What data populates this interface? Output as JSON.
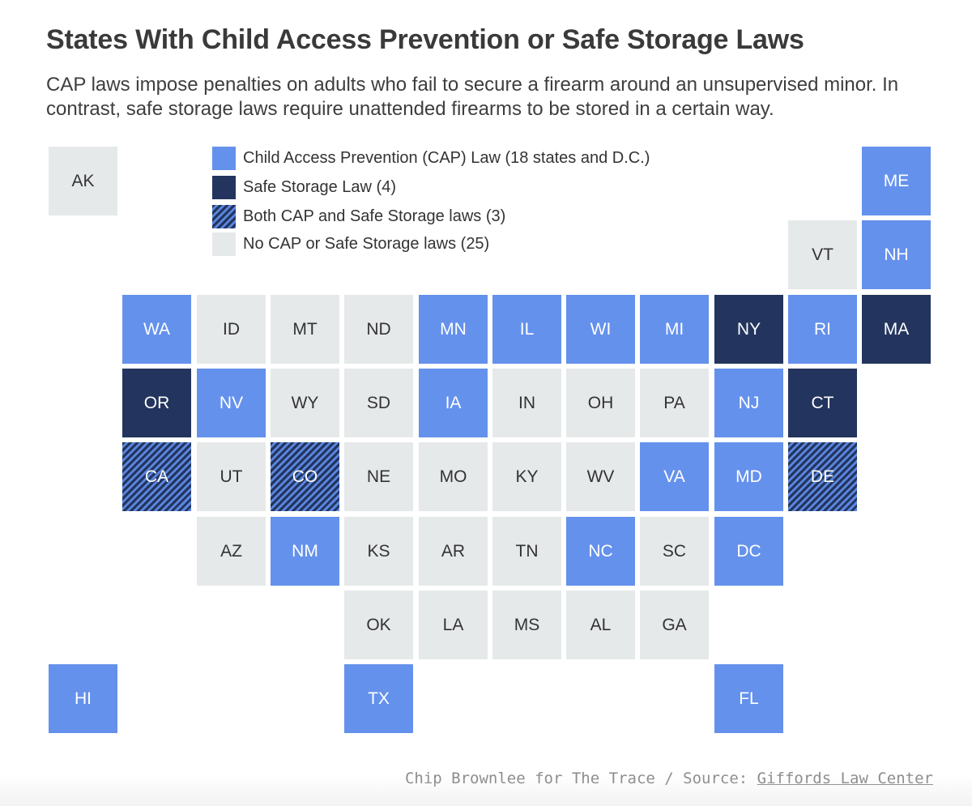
{
  "title": "States With Child Access Prevention or Safe Storage Laws",
  "subtitle": "CAP laws impose penalties on adults who fail to secure a firearm around an unsupervised minor. In contrast, safe storage laws require unattended firearms to be stored in a certain way.",
  "legend": [
    {
      "key": "cap",
      "label": "Child Access Prevention (CAP) Law (18 states and D.C.)"
    },
    {
      "key": "safe",
      "label": "Safe Storage Law (4)"
    },
    {
      "key": "both",
      "label": "Both CAP and Safe Storage laws (3)"
    },
    {
      "key": "none",
      "label": "No CAP or Safe Storage laws (25)"
    }
  ],
  "colors": {
    "cap": "#6491ec",
    "safe": "#23355e",
    "both_hatch": "#5b86e0",
    "none": "#e6e9ea"
  },
  "states": [
    {
      "abbr": "AK",
      "cat": "none"
    },
    {
      "abbr": "ME",
      "cat": "cap"
    },
    {
      "abbr": "VT",
      "cat": "none"
    },
    {
      "abbr": "NH",
      "cat": "cap"
    },
    {
      "abbr": "WA",
      "cat": "cap"
    },
    {
      "abbr": "ID",
      "cat": "none"
    },
    {
      "abbr": "MT",
      "cat": "none"
    },
    {
      "abbr": "ND",
      "cat": "none"
    },
    {
      "abbr": "MN",
      "cat": "cap"
    },
    {
      "abbr": "IL",
      "cat": "cap"
    },
    {
      "abbr": "WI",
      "cat": "cap"
    },
    {
      "abbr": "MI",
      "cat": "cap"
    },
    {
      "abbr": "NY",
      "cat": "safe"
    },
    {
      "abbr": "RI",
      "cat": "cap"
    },
    {
      "abbr": "MA",
      "cat": "safe"
    },
    {
      "abbr": "OR",
      "cat": "safe"
    },
    {
      "abbr": "NV",
      "cat": "cap"
    },
    {
      "abbr": "WY",
      "cat": "none"
    },
    {
      "abbr": "SD",
      "cat": "none"
    },
    {
      "abbr": "IA",
      "cat": "cap"
    },
    {
      "abbr": "IN",
      "cat": "none"
    },
    {
      "abbr": "OH",
      "cat": "none"
    },
    {
      "abbr": "PA",
      "cat": "none"
    },
    {
      "abbr": "NJ",
      "cat": "cap"
    },
    {
      "abbr": "CT",
      "cat": "safe"
    },
    {
      "abbr": "CA",
      "cat": "both"
    },
    {
      "abbr": "UT",
      "cat": "none"
    },
    {
      "abbr": "CO",
      "cat": "both"
    },
    {
      "abbr": "NE",
      "cat": "none"
    },
    {
      "abbr": "MO",
      "cat": "none"
    },
    {
      "abbr": "KY",
      "cat": "none"
    },
    {
      "abbr": "WV",
      "cat": "none"
    },
    {
      "abbr": "VA",
      "cat": "cap"
    },
    {
      "abbr": "MD",
      "cat": "cap"
    },
    {
      "abbr": "DE",
      "cat": "both"
    },
    {
      "abbr": "AZ",
      "cat": "none"
    },
    {
      "abbr": "NM",
      "cat": "cap"
    },
    {
      "abbr": "KS",
      "cat": "none"
    },
    {
      "abbr": "AR",
      "cat": "none"
    },
    {
      "abbr": "TN",
      "cat": "none"
    },
    {
      "abbr": "NC",
      "cat": "cap"
    },
    {
      "abbr": "SC",
      "cat": "none"
    },
    {
      "abbr": "DC",
      "cat": "cap"
    },
    {
      "abbr": "OK",
      "cat": "none"
    },
    {
      "abbr": "LA",
      "cat": "none"
    },
    {
      "abbr": "MS",
      "cat": "none"
    },
    {
      "abbr": "AL",
      "cat": "none"
    },
    {
      "abbr": "GA",
      "cat": "none"
    },
    {
      "abbr": "HI",
      "cat": "cap"
    },
    {
      "abbr": "TX",
      "cat": "cap"
    },
    {
      "abbr": "FL",
      "cat": "cap"
    }
  ],
  "credit": {
    "prefix": "Chip Brownlee for The Trace / Source: ",
    "link": "Giffords Law Center"
  }
}
